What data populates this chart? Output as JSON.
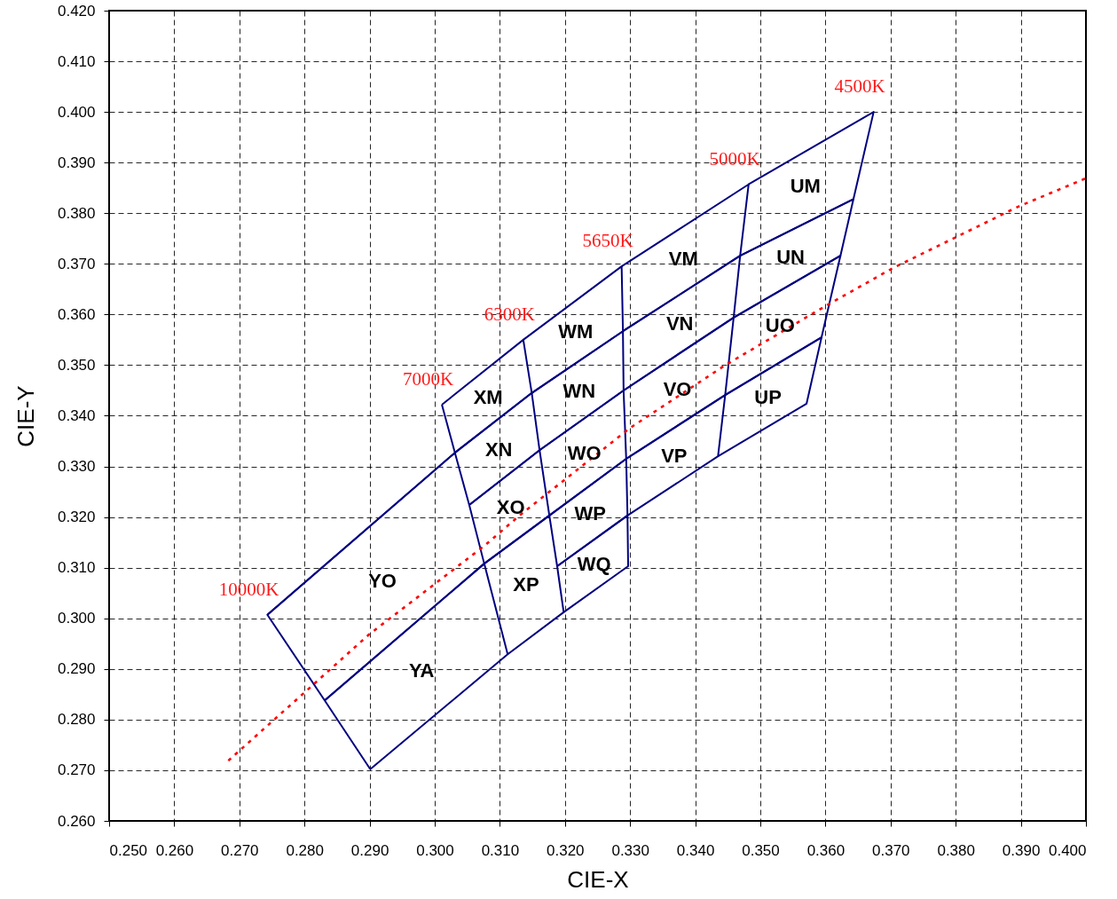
{
  "chart_data": {
    "type": "line",
    "xlabel": "CIE-X",
    "ylabel": "CIE-Y",
    "xlim": [
      0.25,
      0.4
    ],
    "ylim": [
      0.26,
      0.42
    ],
    "xticks": [
      {
        "value": 0.25,
        "label": "0.250"
      },
      {
        "value": 0.26,
        "label": "0.260"
      },
      {
        "value": 0.27,
        "label": "0.270"
      },
      {
        "value": 0.28,
        "label": "0.280"
      },
      {
        "value": 0.29,
        "label": "0.290"
      },
      {
        "value": 0.3,
        "label": "0.300"
      },
      {
        "value": 0.31,
        "label": "0.310"
      },
      {
        "value": 0.32,
        "label": "0.320"
      },
      {
        "value": 0.33,
        "label": "0.330"
      },
      {
        "value": 0.34,
        "label": "0.340"
      },
      {
        "value": 0.35,
        "label": "0.350"
      },
      {
        "value": 0.36,
        "label": "0.360"
      },
      {
        "value": 0.37,
        "label": "0.370"
      },
      {
        "value": 0.38,
        "label": "0.380"
      },
      {
        "value": 0.39,
        "label": "0.390"
      },
      {
        "value": 0.4,
        "label": "0.400"
      }
    ],
    "yticks": [
      {
        "value": 0.26,
        "label": "0.260"
      },
      {
        "value": 0.27,
        "label": "0.270"
      },
      {
        "value": 0.28,
        "label": "0.280"
      },
      {
        "value": 0.29,
        "label": "0.290"
      },
      {
        "value": 0.3,
        "label": "0.300"
      },
      {
        "value": 0.31,
        "label": "0.310"
      },
      {
        "value": 0.32,
        "label": "0.320"
      },
      {
        "value": 0.33,
        "label": "0.330"
      },
      {
        "value": 0.34,
        "label": "0.340"
      },
      {
        "value": 0.35,
        "label": "0.350"
      },
      {
        "value": 0.36,
        "label": "0.360"
      },
      {
        "value": 0.37,
        "label": "0.370"
      },
      {
        "value": 0.38,
        "label": "0.380"
      },
      {
        "value": 0.39,
        "label": "0.390"
      },
      {
        "value": 0.4,
        "label": "0.400"
      },
      {
        "value": 0.41,
        "label": "0.410"
      },
      {
        "value": 0.42,
        "label": "0.420"
      }
    ],
    "grid": true,
    "line_style": "solid",
    "series": [
      {
        "name": "UM",
        "color": "#000080",
        "x": [
          0.3482,
          0.3674,
          0.3643,
          0.3469
        ],
        "values": [
          0.3857,
          0.4,
          0.3828,
          0.3716
        ]
      },
      {
        "name": "UN",
        "color": "#000080",
        "x": [
          0.3469,
          0.3643,
          0.3623,
          0.3459
        ],
        "values": [
          0.3716,
          0.3828,
          0.3716,
          0.3594
        ]
      },
      {
        "name": "UO",
        "color": "#000080",
        "x": [
          0.3459,
          0.3623,
          0.3594,
          0.3446
        ],
        "values": [
          0.3594,
          0.3716,
          0.3555,
          0.3441
        ]
      },
      {
        "name": "UP",
        "color": "#000080",
        "x": [
          0.3446,
          0.3594,
          0.3571,
          0.3435
        ],
        "values": [
          0.3441,
          0.3555,
          0.3424,
          0.332
        ]
      },
      {
        "name": "VM",
        "color": "#000080",
        "x": [
          0.3287,
          0.3482,
          0.3469,
          0.3289
        ],
        "values": [
          0.3695,
          0.3857,
          0.3716,
          0.3567
        ]
      },
      {
        "name": "VN",
        "color": "#000080",
        "x": [
          0.3289,
          0.3469,
          0.3459,
          0.329
        ],
        "values": [
          0.3567,
          0.3716,
          0.3594,
          0.345
        ]
      },
      {
        "name": "VO",
        "color": "#000080",
        "x": [
          0.329,
          0.3459,
          0.3446,
          0.3294
        ],
        "values": [
          0.345,
          0.3594,
          0.3441,
          0.3315
        ]
      },
      {
        "name": "VP",
        "color": "#000080",
        "x": [
          0.3294,
          0.3446,
          0.3435,
          0.3296
        ],
        "values": [
          0.3315,
          0.3441,
          0.332,
          0.3203
        ]
      },
      {
        "name": "WM",
        "color": "#000080",
        "x": [
          0.3136,
          0.3287,
          0.3289,
          0.3149
        ],
        "values": [
          0.355,
          0.3695,
          0.3567,
          0.3445
        ]
      },
      {
        "name": "WN",
        "color": "#000080",
        "x": [
          0.3149,
          0.3289,
          0.329,
          0.3161
        ],
        "values": [
          0.3445,
          0.3567,
          0.345,
          0.3332
        ]
      },
      {
        "name": "WO",
        "color": "#000080",
        "x": [
          0.3161,
          0.329,
          0.3294,
          0.3176
        ],
        "values": [
          0.3332,
          0.345,
          0.3315,
          0.3203
        ]
      },
      {
        "name": "WP",
        "color": "#000080",
        "x": [
          0.3176,
          0.3294,
          0.3296,
          0.3188
        ],
        "values": [
          0.3203,
          0.3315,
          0.3203,
          0.3103
        ]
      },
      {
        "name": "WQ",
        "color": "#000080",
        "x": [
          0.3188,
          0.3296,
          0.3297,
          0.3198
        ],
        "values": [
          0.3103,
          0.3203,
          0.3103,
          0.3012
        ]
      },
      {
        "name": "XM",
        "color": "#000080",
        "x": [
          0.3011,
          0.3136,
          0.3149,
          0.3031
        ],
        "values": [
          0.3422,
          0.355,
          0.3445,
          0.3327
        ]
      },
      {
        "name": "XN",
        "color": "#000080",
        "x": [
          0.3031,
          0.3149,
          0.3161,
          0.3053
        ],
        "values": [
          0.3327,
          0.3445,
          0.3332,
          0.3224
        ]
      },
      {
        "name": "XO",
        "color": "#000080",
        "x": [
          0.3053,
          0.3161,
          0.3176,
          0.3076
        ],
        "values": [
          0.3224,
          0.3332,
          0.3203,
          0.3108
        ]
      },
      {
        "name": "XP",
        "color": "#000080",
        "x": [
          0.3076,
          0.3176,
          0.3188,
          0.3198,
          0.3112
        ],
        "values": [
          0.3108,
          0.3203,
          0.3103,
          0.3012,
          0.2929
        ]
      },
      {
        "name": "YO",
        "color": "#000080",
        "x": [
          0.2743,
          0.3031,
          0.3053,
          0.3076,
          0.2831
        ],
        "values": [
          0.3007,
          0.3327,
          0.3224,
          0.3108,
          0.2838
        ]
      },
      {
        "name": "YA",
        "color": "#000080",
        "x": [
          0.2831,
          0.3076,
          0.3112,
          0.2901
        ],
        "values": [
          0.2838,
          0.3108,
          0.2929,
          0.2702
        ]
      },
      {
        "color": "#000080",
        "x": [
          0.3011,
          0.3031,
          0.2743,
          0.2831,
          0.2901
        ],
        "values": [
          0.3422,
          0.3327,
          0.3007,
          0.2838,
          0.2702
        ]
      },
      {
        "color": "#ff0000",
        "line_style": "dotted",
        "x": [
          0.2683,
          0.2816,
          0.2899,
          0.3076,
          0.3132,
          0.33,
          0.3445,
          0.3599,
          0.3704,
          0.3896,
          0.4
        ],
        "values": [
          0.2719,
          0.2872,
          0.2968,
          0.3143,
          0.3205,
          0.3376,
          0.3499,
          0.3616,
          0.3692,
          0.3813,
          0.3869
        ]
      }
    ],
    "annotations": [
      {
        "text": "10000K",
        "x": 0.2743,
        "y": 0.3007
      },
      {
        "text": "7000K",
        "x": 0.3011,
        "y": 0.3422
      },
      {
        "text": "6300K",
        "x": 0.3136,
        "y": 0.355
      },
      {
        "text": "5650K",
        "x": 0.3287,
        "y": 0.3695
      },
      {
        "text": "5000K",
        "x": 0.3482,
        "y": 0.3857
      },
      {
        "text": "4500K",
        "x": 0.3674,
        "y": 0.4
      }
    ]
  }
}
